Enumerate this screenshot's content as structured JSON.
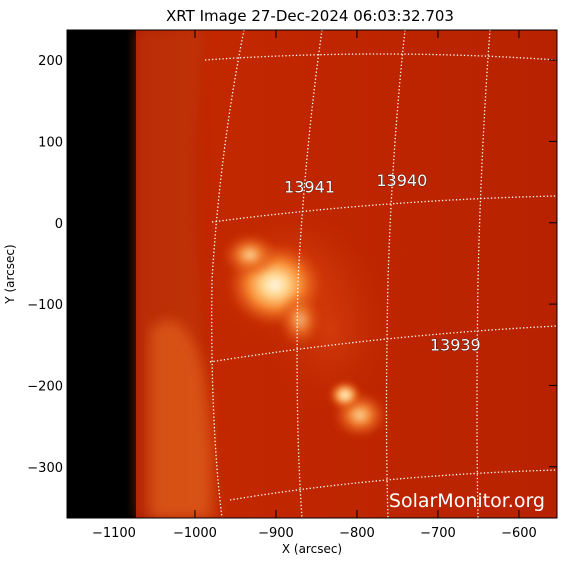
{
  "image": {
    "title": "XRT Image 27-Dec-2024 06:03:32.703",
    "x_axis": {
      "label": "X (arcsec)",
      "ticks": [
        {
          "value": -1100,
          "label": "−1100"
        },
        {
          "value": -1000,
          "label": "−1000"
        },
        {
          "value": -900,
          "label": "−900"
        },
        {
          "value": -800,
          "label": "−800"
        },
        {
          "value": -700,
          "label": "−700"
        },
        {
          "value": -600,
          "label": "−600"
        }
      ],
      "range": [
        -1158,
        -553
      ]
    },
    "y_axis": {
      "label": "Y (arcsec)",
      "ticks": [
        {
          "value": 200,
          "label": "200"
        },
        {
          "value": 100,
          "label": "100"
        },
        {
          "value": 0,
          "label": "0"
        },
        {
          "value": -100,
          "label": "−100"
        },
        {
          "value": -200,
          "label": "−200"
        },
        {
          "value": -300,
          "label": "−300"
        }
      ],
      "range": [
        -363,
        237
      ]
    },
    "active_regions": [
      {
        "label": "13941",
        "x": -890,
        "y": 37
      },
      {
        "label": "13940",
        "x": -776,
        "y": 45
      },
      {
        "label": "13939",
        "x": -710,
        "y": -157
      }
    ],
    "watermark": "SolarMonitor.org",
    "colors": {
      "background_disk": "#b42000",
      "off_disk": "#000000",
      "grid": "#ffffff",
      "bright_core": "#fff6e0"
    }
  }
}
